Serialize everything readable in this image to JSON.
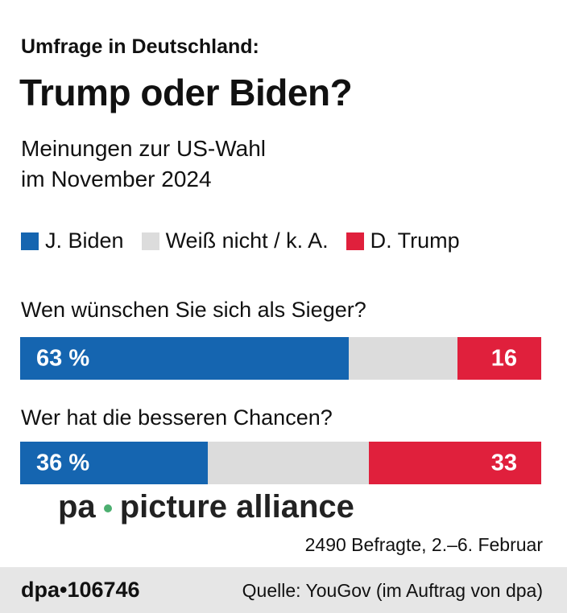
{
  "header": {
    "kicker": "Umfrage in Deutschland:",
    "title": "Trump oder Biden?",
    "subtitle_line1": "Meinungen zur US-Wahl",
    "subtitle_line2": "im November 2024"
  },
  "colors": {
    "biden": "#1565b0",
    "unknown": "#dcdcdc",
    "trump": "#e0203c"
  },
  "chart_data": {
    "type": "bar",
    "stacked": true,
    "orientation": "horizontal",
    "legend": [
      "J. Biden",
      "Weiß nicht / k. A.",
      "D. Trump"
    ],
    "categories": [
      "Wen wünschen Sie sich als Sieger?",
      "Wer hat die besseren Chancen?"
    ],
    "series": [
      {
        "name": "J. Biden",
        "values": [
          63,
          36
        ],
        "labels": [
          "63 %",
          "36 %"
        ]
      },
      {
        "name": "Weiß nicht / k. A.",
        "values": [
          21,
          31
        ]
      },
      {
        "name": "D. Trump",
        "values": [
          16,
          33
        ],
        "labels": [
          "16",
          "33"
        ]
      }
    ]
  },
  "note": "2490 Befragte, 2.–6. Februar",
  "footer": {
    "id": "dpa•106746",
    "source": "Quelle: YouGov (im Auftrag von dpa)"
  },
  "watermark": {
    "left": "pa",
    "right": "picture alliance"
  }
}
